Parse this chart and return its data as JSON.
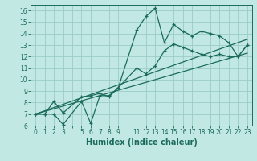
{
  "title": "",
  "xlabel": "Humidex (Indice chaleur)",
  "bg_color": "#c2e8e4",
  "grid_color": "#9bccc8",
  "line_color": "#1a6b5a",
  "xmin": -0.5,
  "xmax": 23.5,
  "ymin": 6,
  "ymax": 16.5,
  "yticks": [
    6,
    7,
    8,
    9,
    10,
    11,
    12,
    13,
    14,
    15,
    16
  ],
  "xtick_labels": [
    "0",
    "1",
    "2",
    "3",
    "",
    "5",
    "6",
    "7",
    "8",
    "9",
    "",
    "11",
    "12",
    "13",
    "14",
    "15",
    "16",
    "17",
    "18",
    "19",
    "20",
    "21",
    "22",
    "23"
  ],
  "line1_x": [
    0,
    1,
    2,
    3,
    5,
    6,
    7,
    8,
    9,
    11,
    12,
    13,
    14,
    15,
    16,
    17,
    18,
    19,
    20,
    21,
    22,
    23
  ],
  "line1_y": [
    7.0,
    7.0,
    7.0,
    6.1,
    8.1,
    6.2,
    8.6,
    8.6,
    9.3,
    14.3,
    15.5,
    16.2,
    13.2,
    14.8,
    14.2,
    13.8,
    14.2,
    14.0,
    13.8,
    13.2,
    12.0,
    13.0
  ],
  "line2_x": [
    0,
    1,
    2,
    3,
    5,
    6,
    7,
    8,
    9,
    11,
    12,
    13,
    14,
    15,
    16,
    17,
    18,
    19,
    20,
    21,
    22,
    23
  ],
  "line2_y": [
    7.0,
    7.0,
    8.1,
    7.1,
    8.5,
    8.6,
    8.8,
    8.5,
    9.3,
    11.0,
    10.5,
    11.2,
    12.5,
    13.1,
    12.8,
    12.5,
    12.2,
    12.0,
    12.2,
    12.0,
    12.0,
    13.0
  ],
  "line3_x": [
    0,
    23
  ],
  "line3_y": [
    7.0,
    13.5
  ],
  "line4_x": [
    0,
    23
  ],
  "line4_y": [
    7.0,
    12.3
  ]
}
